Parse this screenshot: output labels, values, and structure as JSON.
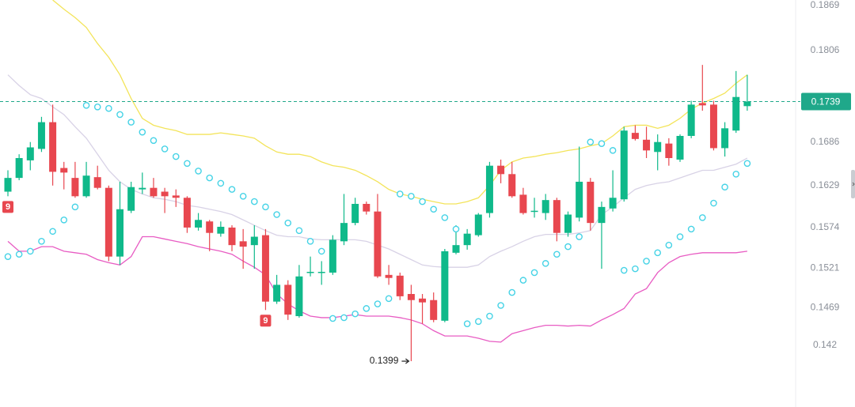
{
  "chart_data": {
    "type": "candlestick",
    "candles": {
      "up_color": "#0fb98a",
      "down_color": "#e8474f",
      "open": [
        0.1621,
        0.1639,
        0.1662,
        0.1677,
        0.1712,
        0.1652,
        0.1639,
        0.1615,
        0.164,
        0.1626,
        0.1536,
        0.1596,
        0.1624,
        0.1626,
        0.1621,
        0.1616,
        0.1613,
        0.1574,
        0.1582,
        0.1566,
        0.1574,
        0.1556,
        0.1551,
        0.1564,
        0.1477,
        0.1499,
        0.1458,
        0.1515,
        0.1515,
        0.1515,
        0.1556,
        0.158,
        0.1605,
        0.1595,
        0.1512,
        0.1511,
        0.1487,
        0.1481,
        0.1479,
        0.1452,
        0.1541,
        0.1551,
        0.1564,
        0.1593,
        0.1655,
        0.1644,
        0.1617,
        0.1595,
        0.1593,
        0.161,
        0.1567,
        0.1587,
        0.1634,
        0.158,
        0.1599,
        0.1611,
        0.1698,
        0.1689,
        0.1673,
        0.1684,
        0.1663,
        0.1694,
        0.1737,
        0.1735,
        0.1678,
        0.1701,
        0.1733
      ],
      "high": [
        0.1649,
        0.167,
        0.1686,
        0.1719,
        0.1735,
        0.166,
        0.166,
        0.166,
        0.1655,
        0.1629,
        0.1634,
        0.1634,
        0.1646,
        0.1639,
        0.1626,
        0.1624,
        0.1615,
        0.1593,
        0.1584,
        0.1582,
        0.1577,
        0.1572,
        0.1577,
        0.1572,
        0.1512,
        0.1505,
        0.1525,
        0.1536,
        0.153,
        0.1564,
        0.1618,
        0.1613,
        0.1608,
        0.1618,
        0.1525,
        0.1515,
        0.1499,
        0.1487,
        0.1489,
        0.1546,
        0.1577,
        0.1572,
        0.1593,
        0.166,
        0.1663,
        0.166,
        0.1626,
        0.1613,
        0.1618,
        0.1613,
        0.1595,
        0.168,
        0.1639,
        0.1608,
        0.1649,
        0.1706,
        0.1708,
        0.1706,
        0.1696,
        0.1691,
        0.1696,
        0.174,
        0.1787,
        0.174,
        0.1712,
        0.1779,
        0.1774
      ],
      "low": [
        0.1615,
        0.1636,
        0.1649,
        0.1673,
        0.1629,
        0.1624,
        0.1613,
        0.1613,
        0.1624,
        0.153,
        0.1525,
        0.1593,
        0.1618,
        0.1613,
        0.1593,
        0.1601,
        0.1567,
        0.157,
        0.1543,
        0.1562,
        0.1543,
        0.152,
        0.152,
        0.1466,
        0.1474,
        0.1453,
        0.1456,
        0.151,
        0.1499,
        0.1512,
        0.1551,
        0.1577,
        0.1591,
        0.1508,
        0.1499,
        0.1479,
        0.1399,
        0.1448,
        0.145,
        0.145,
        0.1539,
        0.1545,
        0.1562,
        0.1587,
        0.1632,
        0.1613,
        0.1591,
        0.1587,
        0.1584,
        0.1556,
        0.1562,
        0.1582,
        0.157,
        0.152,
        0.1595,
        0.1608,
        0.1688,
        0.1665,
        0.1649,
        0.1655,
        0.166,
        0.1691,
        0.1727,
        0.1675,
        0.1667,
        0.1698,
        0.1727
      ],
      "close": [
        0.1639,
        0.1665,
        0.1679,
        0.1712,
        0.1647,
        0.1646,
        0.1615,
        0.1642,
        0.1626,
        0.1536,
        0.1598,
        0.1627,
        0.1626,
        0.1615,
        0.1615,
        0.1613,
        0.1574,
        0.1584,
        0.1567,
        0.1575,
        0.1551,
        0.1549,
        0.1562,
        0.1477,
        0.1499,
        0.146,
        0.151,
        0.1516,
        0.1516,
        0.1558,
        0.158,
        0.1605,
        0.1595,
        0.151,
        0.1508,
        0.1484,
        0.1479,
        0.1476,
        0.1453,
        0.1543,
        0.1551,
        0.1566,
        0.1591,
        0.1655,
        0.1644,
        0.1615,
        0.1593,
        0.1596,
        0.161,
        0.1567,
        0.1591,
        0.1634,
        0.158,
        0.1601,
        0.1613,
        0.1701,
        0.169,
        0.1675,
        0.1686,
        0.1665,
        0.1694,
        0.1735,
        0.1734,
        0.1678,
        0.1704,
        0.1745,
        0.1739
      ]
    },
    "overlays": [
      {
        "color": "#f3e45a",
        "values": [
          null,
          null,
          null,
          null,
          0.1872,
          0.186,
          0.1849,
          0.1836,
          0.1815,
          0.1797,
          0.1774,
          0.1743,
          0.1717,
          0.1708,
          0.1704,
          0.1701,
          0.1696,
          0.1696,
          0.1696,
          0.1698,
          0.1696,
          0.1694,
          0.1691,
          0.1681,
          0.1673,
          0.167,
          0.167,
          0.1667,
          0.166,
          0.1655,
          0.1653,
          0.1649,
          0.1642,
          0.1634,
          0.1624,
          0.1618,
          0.1615,
          0.1611,
          0.1608,
          0.1605,
          0.1605,
          0.1608,
          0.1613,
          0.1629,
          0.1649,
          0.166,
          0.1665,
          0.1667,
          0.167,
          0.1672,
          0.1675,
          0.1677,
          0.1681,
          0.1684,
          0.1694,
          0.1706,
          0.1708,
          0.1708,
          0.1704,
          0.1708,
          0.1717,
          0.1729,
          0.1737,
          0.1743,
          0.175,
          0.1763,
          0.1774
        ]
      },
      {
        "color": "#d8d2e6",
        "values": [
          0.1774,
          0.176,
          0.1748,
          0.1743,
          0.1732,
          0.1722,
          0.1706,
          0.1691,
          0.167,
          0.1649,
          0.1634,
          0.1624,
          0.1618,
          0.1613,
          0.1611,
          0.1608,
          0.1603,
          0.1601,
          0.1598,
          0.1595,
          0.1591,
          0.1584,
          0.1577,
          0.157,
          0.1564,
          0.1562,
          0.1562,
          0.1559,
          0.1558,
          0.1558,
          0.1558,
          0.1558,
          0.1556,
          0.1551,
          0.1546,
          0.1539,
          0.1532,
          0.1525,
          0.1523,
          0.1522,
          0.1522,
          0.1522,
          0.1525,
          0.1536,
          0.1543,
          0.1549,
          0.1556,
          0.1562,
          0.1565,
          0.1565,
          0.1565,
          0.1567,
          0.157,
          0.1591,
          0.1601,
          0.1613,
          0.1624,
          0.1629,
          0.1632,
          0.1634,
          0.1639,
          0.1644,
          0.1649,
          0.1649,
          0.1653,
          0.1657,
          0.1665
        ]
      },
      {
        "color": "#e85cc3",
        "values": [
          0.1556,
          0.1543,
          0.1543,
          0.1549,
          0.1549,
          0.1543,
          0.1541,
          0.1539,
          0.1532,
          0.1528,
          0.1525,
          0.1536,
          0.1562,
          0.1562,
          0.1559,
          0.1556,
          0.1553,
          0.1549,
          0.1546,
          0.1543,
          0.1539,
          0.153,
          0.1522,
          0.1512,
          0.1487,
          0.1474,
          0.1465,
          0.1458,
          0.1456,
          0.1456,
          0.1458,
          0.146,
          0.1458,
          0.1458,
          0.1458,
          0.1456,
          0.1453,
          0.1448,
          0.1439,
          0.1432,
          0.1432,
          0.1432,
          0.1429,
          0.1425,
          0.1424,
          0.1435,
          0.1439,
          0.1443,
          0.1446,
          0.1446,
          0.1445,
          0.1446,
          0.1445,
          0.1453,
          0.146,
          0.1468,
          0.1487,
          0.1494,
          0.1515,
          0.1528,
          0.1536,
          0.1539,
          0.1541,
          0.1541,
          0.1541,
          0.1541,
          0.1543
        ]
      }
    ],
    "sar": {
      "color": "#46d3e6",
      "values": [
        0.1536,
        0.1539,
        0.1543,
        0.1556,
        0.1569,
        0.1584,
        0.1601,
        0.1734,
        0.1732,
        0.173,
        0.1722,
        0.1712,
        0.1699,
        0.1688,
        0.1677,
        0.1667,
        0.1658,
        0.1648,
        0.1639,
        0.1632,
        0.1624,
        0.1615,
        0.1608,
        0.1601,
        0.1591,
        0.158,
        0.157,
        0.1556,
        0.1543,
        0.1455,
        0.1456,
        0.1461,
        0.1468,
        0.1474,
        0.1481,
        0.1618,
        0.1615,
        0.1608,
        0.1598,
        0.1587,
        0.1572,
        0.1448,
        0.1451,
        0.1458,
        0.1472,
        0.1489,
        0.1505,
        0.1515,
        0.1527,
        0.1539,
        0.1549,
        0.1562,
        0.1686,
        0.1684,
        0.1675,
        0.1518,
        0.152,
        0.153,
        0.1541,
        0.1551,
        0.1562,
        0.1572,
        0.1587,
        0.1606,
        0.1627,
        0.1644,
        0.1658
      ]
    },
    "td_setup": [
      9,
      null,
      null,
      null,
      null,
      null,
      null,
      null,
      null,
      null,
      null,
      null,
      null,
      null,
      null,
      null,
      null,
      null,
      null,
      null,
      null,
      null,
      null,
      9,
      null,
      null,
      null,
      null,
      null,
      null,
      null,
      null,
      null,
      null,
      null,
      null,
      null,
      null,
      null,
      null,
      null,
      null,
      null,
      null,
      null,
      null,
      null,
      null,
      null,
      null,
      null,
      null,
      null,
      null,
      null,
      null,
      null,
      null,
      null,
      null,
      null,
      null,
      null,
      null,
      null,
      null,
      null
    ],
    "ylim": [
      0.1339,
      0.1872
    ],
    "yticks": [
      0.1869,
      0.1806,
      0.1686,
      0.1629,
      0.1574,
      0.1521,
      0.1469,
      0.142
    ],
    "price_line_color": "#1fa88a"
  }
}
